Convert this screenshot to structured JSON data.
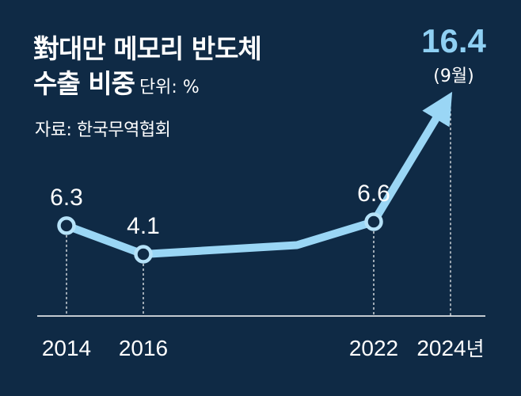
{
  "header": {
    "title_line1": "對대만 메모리 반도체",
    "title_line2": "수출 비중",
    "unit": "단위: %",
    "source": "자료: 한국무역협회"
  },
  "chart_data": {
    "type": "line",
    "title": "對대만 메모리 반도체 수출 비중",
    "unit": "%",
    "x": [
      2014,
      2016,
      2020,
      2022,
      2024
    ],
    "values": [
      6.3,
      4.1,
      4.8,
      6.6,
      16.4
    ],
    "point_labels": [
      "6.3",
      "4.1",
      "",
      "6.6",
      "16.4"
    ],
    "markers": [
      true,
      true,
      false,
      true,
      false
    ],
    "tick_labels": [
      {
        "year": 2014,
        "text": "2014",
        "suffix": ""
      },
      {
        "year": 2016,
        "text": "2016",
        "suffix": ""
      },
      {
        "year": 2022,
        "text": "2022",
        "suffix": ""
      },
      {
        "year": 2024,
        "text": "2024",
        "suffix": "년"
      }
    ],
    "last_point_note": "(9월)",
    "ylim": [
      0,
      18
    ],
    "grid": false,
    "colors": {
      "background": "#0f2a45",
      "line": "#9ad6f5",
      "highlight": "#8fd0f3"
    }
  }
}
